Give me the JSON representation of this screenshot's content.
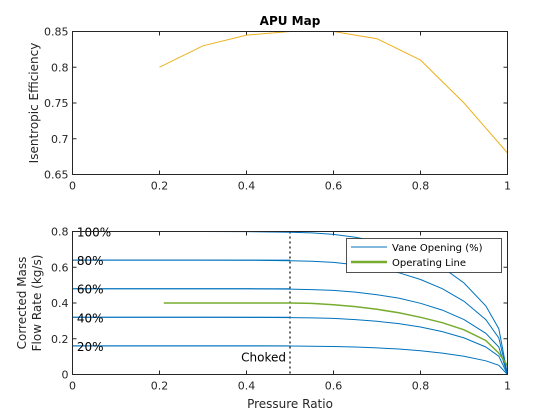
{
  "figure": {
    "background": "#ffffff",
    "axes_color": "#262626",
    "colors": {
      "series": "#edb120",
      "vane": "#0072bd",
      "operating_line": "#77ac30",
      "choke_line": "#000000"
    }
  },
  "chart_data": [
    {
      "type": "line",
      "title": "APU Map",
      "xlabel": "",
      "ylabel": "Isentropic Efficiency",
      "xlim": [
        0,
        1
      ],
      "ylim": [
        0.65,
        0.85
      ],
      "grid": false,
      "xticks": [
        0,
        0.2,
        0.4,
        0.6,
        0.8,
        1
      ],
      "xtick_labels": [
        "0",
        "0.2",
        "0.4",
        "0.6",
        "0.8",
        "1"
      ],
      "yticks": [
        0.65,
        0.7,
        0.75,
        0.8,
        0.85
      ],
      "ytick_labels": [
        "0.65",
        "0.7",
        "0.75",
        "0.8",
        "0.85"
      ],
      "series": [
        {
          "x": [
            0.2,
            0.3,
            0.4,
            0.5,
            0.6,
            0.7,
            0.8,
            0.9,
            1.0
          ],
          "y": [
            0.8,
            0.83,
            0.845,
            0.85,
            0.85,
            0.84,
            0.81,
            0.75,
            0.68
          ]
        }
      ]
    },
    {
      "type": "line",
      "title": "",
      "xlabel": "Pressure Ratio",
      "ylabel": "Corrected Mass Flow Rate (kg/s)",
      "ylabel_lines": [
        "Corrected Mass",
        "Flow Rate (kg/s)"
      ],
      "xlim": [
        0,
        1
      ],
      "ylim": [
        0,
        0.8
      ],
      "grid": false,
      "xticks": [
        0,
        0.2,
        0.4,
        0.6,
        0.8,
        1
      ],
      "xtick_labels": [
        "0",
        "0.2",
        "0.4",
        "0.6",
        "0.8",
        "1"
      ],
      "yticks": [
        0,
        0.2,
        0.4,
        0.6,
        0.8
      ],
      "ytick_labels": [
        "0",
        "0.2",
        "0.4",
        "0.6",
        "0.8"
      ],
      "legend": {
        "location": "top-right",
        "entries": [
          "Vane Opening (%)",
          "Operating Line"
        ]
      },
      "vane_curves": [
        {
          "label": "100%",
          "flow": 0.8,
          "label_x": 0.01
        },
        {
          "label": "80%",
          "flow": 0.64,
          "label_x": 0.01
        },
        {
          "label": "60%",
          "flow": 0.48,
          "label_x": 0.01
        },
        {
          "label": "40%",
          "flow": 0.32,
          "label_x": 0.01
        },
        {
          "label": "20%",
          "flow": 0.16,
          "label_x": 0.01
        }
      ],
      "vane_curve_shape": {
        "pressure_ratio": [
          0,
          0.3,
          0.4,
          0.5,
          0.55,
          0.6,
          0.65,
          0.7,
          0.75,
          0.8,
          0.85,
          0.9,
          0.95,
          0.98,
          1.0
        ],
        "flow_fraction": [
          1,
          1,
          0.999,
          0.995,
          0.99,
          0.98,
          0.96,
          0.93,
          0.89,
          0.83,
          0.75,
          0.64,
          0.48,
          0.32,
          0
        ]
      },
      "operating_line": {
        "name": "Operating Line",
        "x": [
          0.21,
          0.5,
          0.55,
          0.6,
          0.65,
          0.7,
          0.75,
          0.8,
          0.85,
          0.9,
          0.95,
          0.98,
          1.0
        ],
        "y": [
          0.4,
          0.4,
          0.398,
          0.39,
          0.38,
          0.365,
          0.345,
          0.32,
          0.29,
          0.25,
          0.19,
          0.12,
          0.05
        ]
      },
      "choke_line": {
        "x": 0.5,
        "label": "Choked",
        "label_y": 0.1
      }
    }
  ]
}
